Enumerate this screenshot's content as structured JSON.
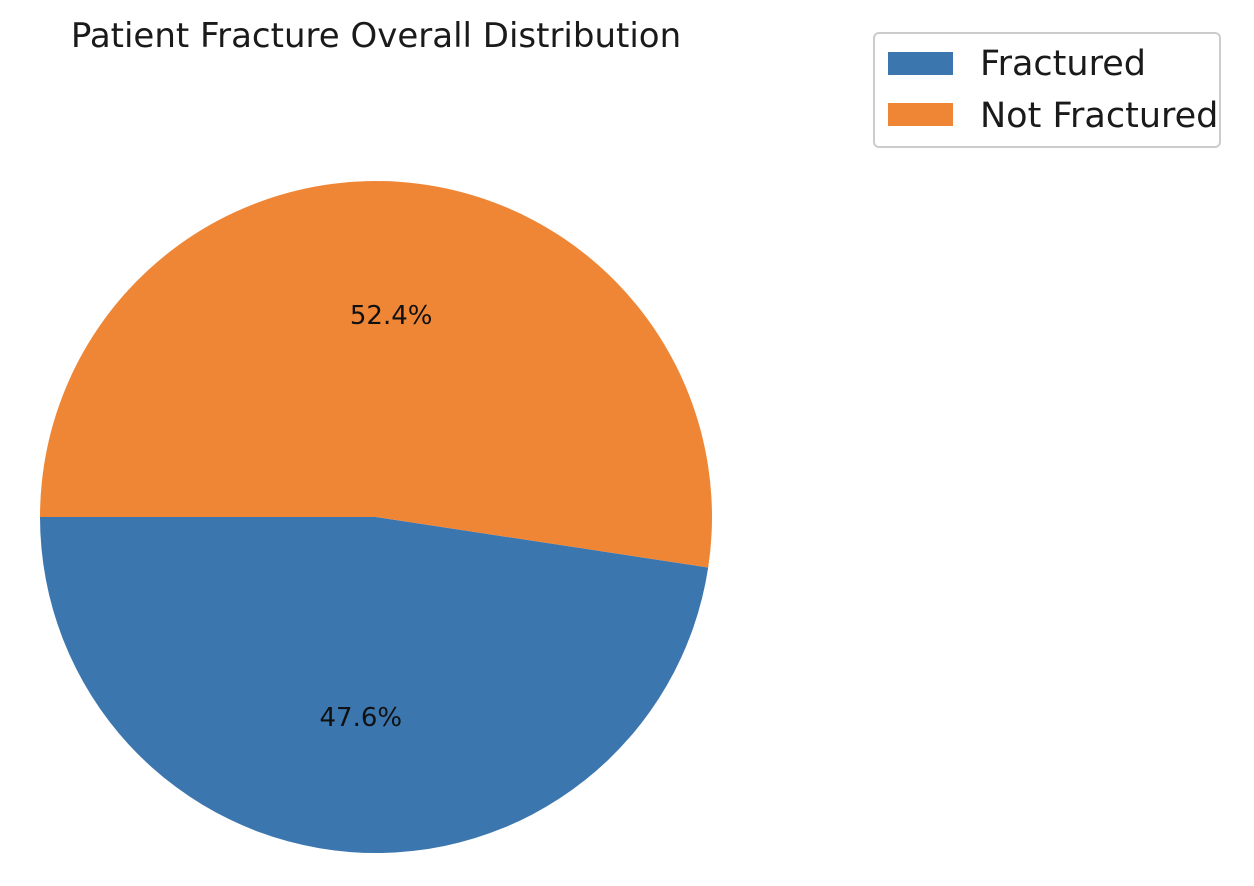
{
  "chart_data": {
    "type": "pie",
    "title": "Patient Fracture Overall Distribution",
    "slices": [
      {
        "label": "Fractured",
        "value": 47.6,
        "display": "47.6%",
        "color": "#3b76af"
      },
      {
        "label": "Not Fractured",
        "value": 52.4,
        "display": "52.4%",
        "color": "#ee8636"
      }
    ],
    "start_angle_deg": 180,
    "direction": "counterclockwise",
    "legend": {
      "position": "top-right",
      "entries": [
        "Fractured",
        "Not Fractured"
      ]
    }
  }
}
